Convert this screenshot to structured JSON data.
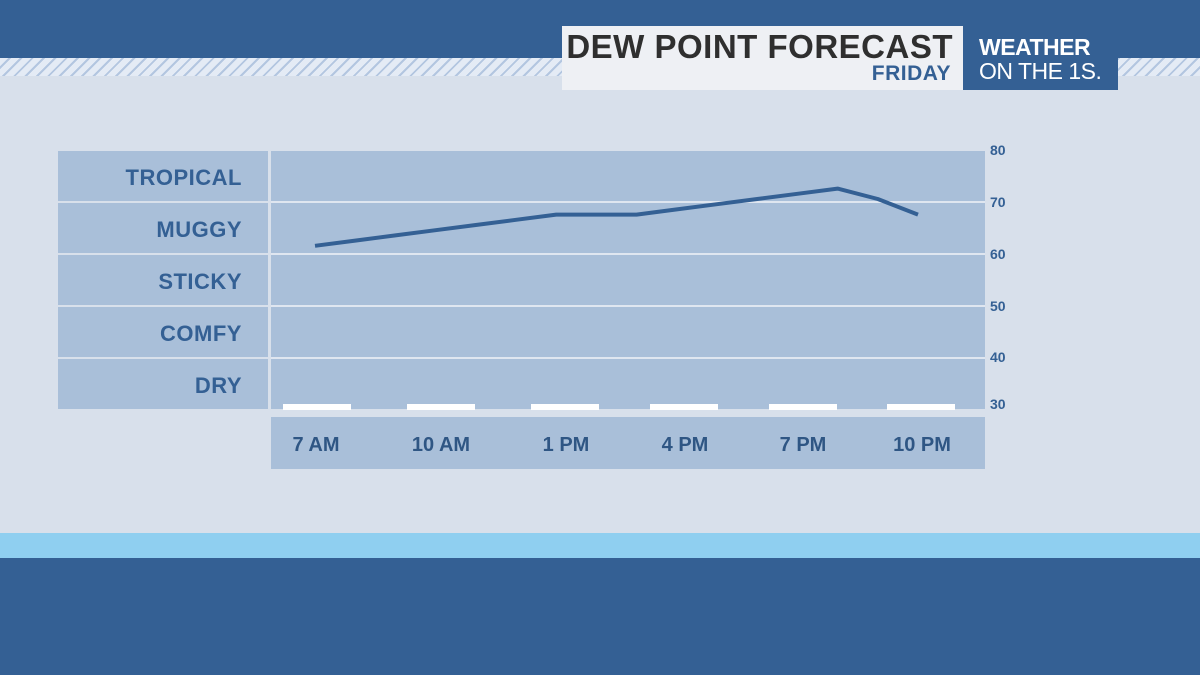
{
  "header": {
    "title": "DEW POINT FORECAST",
    "subtitle": "FRIDAY",
    "logo_line1": "WEATHER",
    "logo_line2": "ON THE 1S."
  },
  "colors": {
    "primary": "#346094",
    "panel": "#a9bfd9",
    "background": "#d8e0eb",
    "accent_band": "#8fcff0",
    "line": "#346094"
  },
  "chart_data": {
    "type": "line",
    "title": "DEW POINT FORECAST",
    "subtitle": "FRIDAY",
    "categories": [
      "TROPICAL",
      "MUGGY",
      "STICKY",
      "COMFY",
      "DRY"
    ],
    "x": [
      "7 AM",
      "10 AM",
      "1 PM",
      "4 PM",
      "7 PM",
      "10 PM"
    ],
    "ylim": [
      30,
      80
    ],
    "yticks": [
      30,
      40,
      50,
      60,
      70,
      80
    ],
    "series": [
      {
        "x": [
          7,
          8,
          9,
          10,
          11,
          12,
          13,
          14,
          15,
          16,
          17,
          18,
          19,
          20,
          21,
          22
        ],
        "values": [
          64,
          65,
          66,
          67,
          68,
          69,
          70,
          70,
          70,
          71,
          72,
          73,
          74,
          75,
          73,
          70
        ]
      }
    ],
    "y_axis_position": "right",
    "grid": true
  }
}
